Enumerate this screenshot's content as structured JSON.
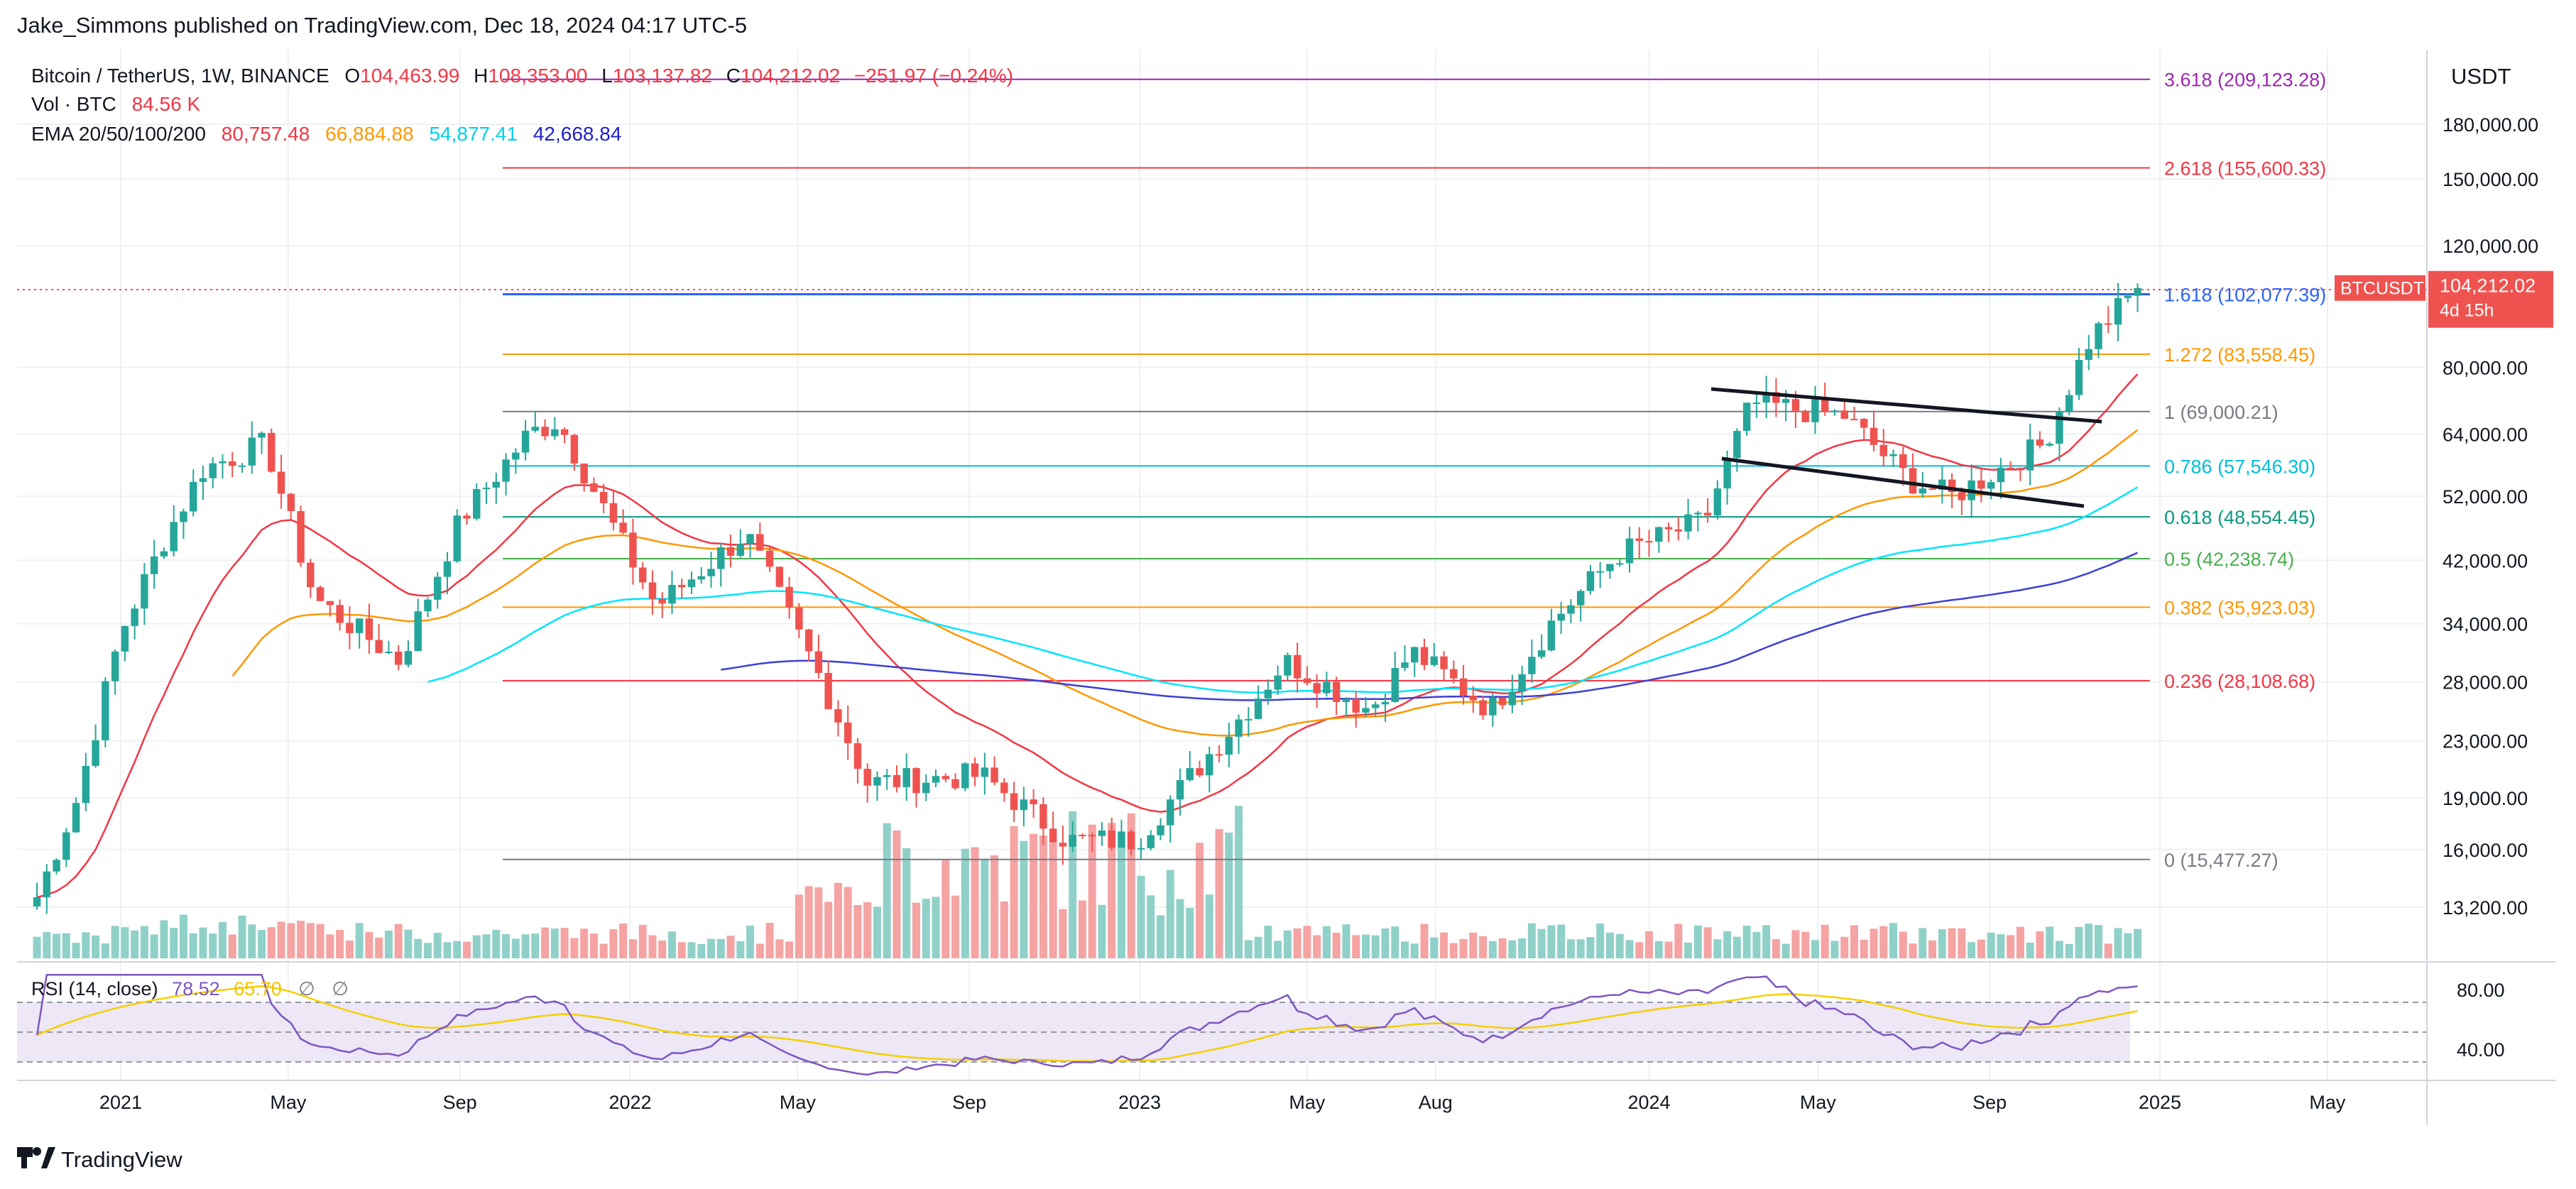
{
  "publisher_line": "Jake_Simmons published on TradingView.com, Dec 18, 2024 04:17 UTC-5",
  "footer_brand": "TradingView",
  "legend": {
    "symbol": "Bitcoin / TetherUS, 1W, BINANCE",
    "ohlc": {
      "o_label": "O",
      "o_value": "104,463.99",
      "h_label": "H",
      "h_value": "108,353.00",
      "l_label": "L",
      "l_value": "103,137.82",
      "c_label": "C",
      "c_value": "104,212.02",
      "change": "−251.97 (−0.24%)"
    },
    "volume_label": "Vol · BTC",
    "volume_value": "84.56 K",
    "ema_label": "EMA 20/50/100/200",
    "ema_values": [
      "80,757.48",
      "66,884.88",
      "54,877.41",
      "42,668.84"
    ]
  },
  "rsi_legend": {
    "label": "RSI (14, close)",
    "value1": "78.52",
    "value2": "65.70",
    "icon1": "∅",
    "icon2": "∅"
  },
  "price_axis": {
    "currency": "USDT",
    "ticks": [
      "180,000.00",
      "150,000.00",
      "120,000.00",
      "80,000.00",
      "64,000.00",
      "52,000.00",
      "42,000.00",
      "34,000.00",
      "28,000.00",
      "23,000.00",
      "19,000.00",
      "16,000.00",
      "13,200.00"
    ],
    "current_badge": {
      "symbol": "BTCUSDT",
      "price": "104,212.02",
      "countdown": "4d 15h"
    },
    "rsi_ticks": [
      "80.00",
      "40.00"
    ]
  },
  "time_axis": [
    "2021",
    "May",
    "Sep",
    "2022",
    "May",
    "Sep",
    "2023",
    "May",
    "Aug",
    "2024",
    "May",
    "Sep",
    "2025",
    "May"
  ],
  "fib_levels": [
    {
      "ratio": "3.618",
      "price": "(209,123.28)",
      "color": "#9c27b0"
    },
    {
      "ratio": "2.618",
      "price": "(155,600.33)",
      "color": "#f23645"
    },
    {
      "ratio": "1.618",
      "price": "(102,077.39)",
      "color": "#2962ff"
    },
    {
      "ratio": "1.272",
      "price": "(83,558.45)",
      "color": "#ff9800"
    },
    {
      "ratio": "1",
      "price": "(69,000.21)",
      "color": "#787b86"
    },
    {
      "ratio": "0.786",
      "price": "(57,546.30)",
      "color": "#00bcd4"
    },
    {
      "ratio": "0.618",
      "price": "(48,554.45)",
      "color": "#089981"
    },
    {
      "ratio": "0.5",
      "price": "(42,238.74)",
      "color": "#4caf50"
    },
    {
      "ratio": "0.382",
      "price": "(35,923.03)",
      "color": "#ff9800"
    },
    {
      "ratio": "0.236",
      "price": "(28,108.68)",
      "color": "#f23645"
    },
    {
      "ratio": "0",
      "price": "(15,477.27)",
      "color": "#787b86"
    }
  ],
  "colors": {
    "up": "#26a69a",
    "down": "#ef5350",
    "vol_up": "#8fd1c8",
    "vol_down": "#f5a3a3",
    "ema20": "#f23645",
    "ema50": "#ff9800",
    "ema100": "#00e5ff",
    "ema200": "#3f3fd8",
    "grid": "#eef0f3",
    "rsi": "#7e57c2",
    "rsi_ma": "#f5d000"
  },
  "chart_data": {
    "type": "candlestick",
    "symbol": "BTCUSDT",
    "interval": "1W",
    "scale": "log",
    "close_series_approx": [
      [
        "2020-11-01",
        13500
      ],
      [
        "2020-12-01",
        19000
      ],
      [
        "2021-01-01",
        33000
      ],
      [
        "2021-02-01",
        45000
      ],
      [
        "2021-03-01",
        57000
      ],
      [
        "2021-04-15",
        62000
      ],
      [
        "2021-05-20",
        37000
      ],
      [
        "2021-07-20",
        30000
      ],
      [
        "2021-09-01",
        48000
      ],
      [
        "2021-10-20",
        64000
      ],
      [
        "2021-11-10",
        67000
      ],
      [
        "2021-12-20",
        47000
      ],
      [
        "2022-01-20",
        36000
      ],
      [
        "2022-03-25",
        46000
      ],
      [
        "2022-05-15",
        29000
      ],
      [
        "2022-06-20",
        20000
      ],
      [
        "2022-09-10",
        20500
      ],
      [
        "2022-11-10",
        16500
      ],
      [
        "2022-12-30",
        16500
      ],
      [
        "2023-03-15",
        25000
      ],
      [
        "2023-04-15",
        30000
      ],
      [
        "2023-06-15",
        25500
      ],
      [
        "2023-07-15",
        31000
      ],
      [
        "2023-09-10",
        25500
      ],
      [
        "2023-10-25",
        34500
      ],
      [
        "2023-12-10",
        43000
      ],
      [
        "2024-02-10",
        48000
      ],
      [
        "2024-03-14",
        71000
      ],
      [
        "2024-05-20",
        68000
      ],
      [
        "2024-07-05",
        55000
      ],
      [
        "2024-08-05",
        52000
      ],
      [
        "2024-10-10",
        62000
      ],
      [
        "2024-11-12",
        88000
      ],
      [
        "2024-12-16",
        104212
      ]
    ],
    "ylim": [
      12000,
      215000
    ]
  }
}
